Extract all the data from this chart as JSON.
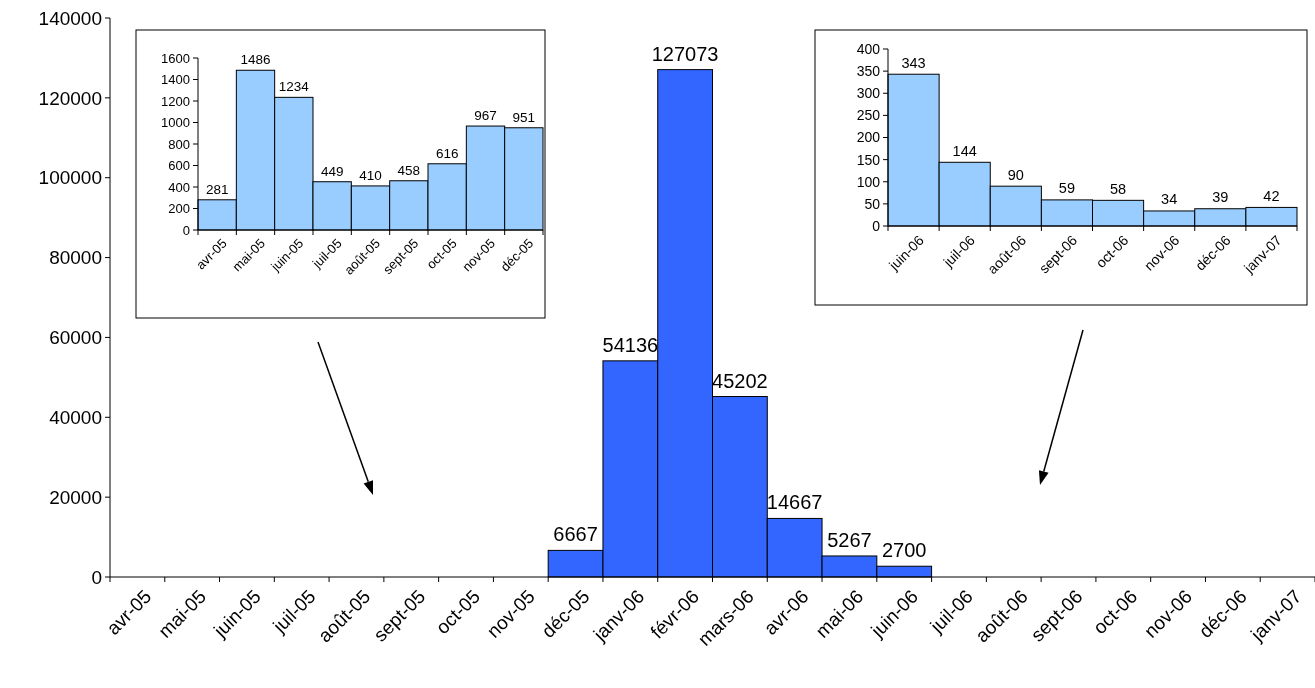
{
  "chart_data": [
    {
      "type": "bar",
      "categories": [
        "avr-05",
        "mai-05",
        "juin-05",
        "juil-05",
        "août-05",
        "sept-05",
        "oct-05",
        "nov-05",
        "déc-05",
        "janv-06",
        "févr-06",
        "mars-06",
        "avr-06",
        "mai-06",
        "juin-06",
        "juil-06",
        "août-06",
        "sept-06",
        "oct-06",
        "nov-06",
        "déc-06",
        "janv-07"
      ],
      "values": [
        null,
        null,
        null,
        null,
        null,
        null,
        null,
        null,
        6667,
        54136,
        127073,
        45202,
        14667,
        5267,
        2700,
        null,
        null,
        null,
        null,
        null,
        null,
        null
      ],
      "color": "#3366ff",
      "ylim": [
        0,
        140000
      ],
      "yticks": [
        0,
        20000,
        40000,
        60000,
        80000,
        100000,
        120000,
        140000
      ],
      "data_labels": true
    },
    {
      "type": "bar",
      "categories": [
        "avr-05",
        "mai-05",
        "juin-05",
        "juil-05",
        "août-05",
        "sept-05",
        "oct-05",
        "nov-05",
        "déc-05"
      ],
      "values": [
        281,
        1486,
        1234,
        449,
        410,
        458,
        616,
        967,
        951
      ],
      "color": "#99ccff",
      "ylim": [
        0,
        1600
      ],
      "yticks": [
        0,
        200,
        400,
        600,
        800,
        1000,
        1200,
        1400,
        1600
      ],
      "data_labels": true
    },
    {
      "type": "bar",
      "categories": [
        "juin-06",
        "juil-06",
        "août-06",
        "sept-06",
        "oct-06",
        "nov-06",
        "déc-06",
        "janv-07"
      ],
      "values": [
        343,
        144,
        90,
        59,
        58,
        34,
        39,
        42
      ],
      "color": "#99ccff",
      "ylim": [
        0,
        400
      ],
      "yticks": [
        0,
        50,
        100,
        150,
        200,
        250,
        300,
        350,
        400
      ],
      "data_labels": true
    }
  ]
}
